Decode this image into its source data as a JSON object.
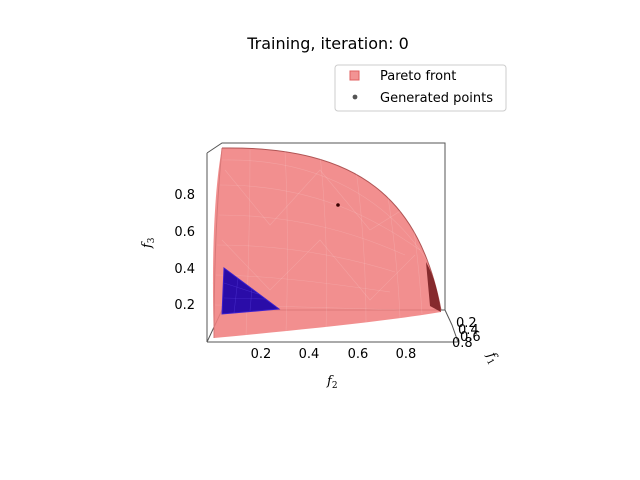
{
  "chart_data": {
    "type": "scatter",
    "title": "Training, iteration: 0",
    "projection": "3d",
    "legend": {
      "placement": "top-right",
      "entries": [
        {
          "label": "Pareto front",
          "marker": "square",
          "color": "#f08080"
        },
        {
          "label": "Generated points",
          "marker": "circle",
          "color": "#555555"
        }
      ]
    },
    "axes": {
      "x": {
        "symbol": "f",
        "subscript": "1",
        "ticks": [
          "0.2",
          "0.4",
          "0.6",
          "0.8"
        ],
        "range": [
          0,
          1
        ]
      },
      "y": {
        "symbol": "f",
        "subscript": "2",
        "ticks": [
          "0.2",
          "0.4",
          "0.6",
          "0.8"
        ],
        "range": [
          0,
          1
        ]
      },
      "z": {
        "symbol": "f",
        "subscript": "3",
        "ticks": [
          "0.2",
          "0.4",
          "0.6",
          "0.8"
        ],
        "range": [
          0,
          1
        ]
      }
    },
    "series": [
      {
        "name": "Pareto front",
        "kind": "surface",
        "shape": "unit sphere octant",
        "color": "#f08080"
      },
      {
        "name": "Generated points",
        "kind": "points",
        "color": "#3a0000",
        "points": [
          {
            "f1": 0.7,
            "f2": 0.5,
            "f3": 0.7
          }
        ]
      }
    ],
    "region": {
      "kind": "triangle",
      "color": "#2a0ca8",
      "edge_color": "#3a1fd0"
    }
  },
  "colors": {
    "surface": "#f08080",
    "surface_dark": "#7a1f22",
    "triangle": "#2a0ca8",
    "pane": "#555555"
  }
}
